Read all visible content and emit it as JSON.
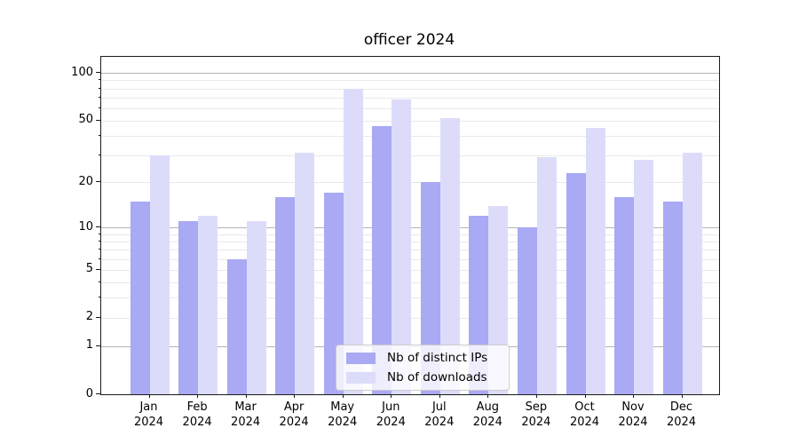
{
  "chart_data": {
    "type": "bar",
    "title": "officer 2024",
    "x_year": "2024",
    "categories": [
      "Jan",
      "Feb",
      "Mar",
      "Apr",
      "May",
      "Jun",
      "Jul",
      "Aug",
      "Sep",
      "Oct",
      "Nov",
      "Dec"
    ],
    "series": [
      {
        "name": "Nb of distinct IPs",
        "color": "#a9a9f4",
        "values": [
          15,
          11,
          6,
          16,
          17,
          46,
          20,
          12,
          10,
          23,
          16,
          15
        ]
      },
      {
        "name": "Nb of downloads",
        "color": "#dcdcfa",
        "values": [
          30,
          12,
          11,
          31,
          80,
          68,
          52,
          14,
          29,
          45,
          28,
          31
        ]
      }
    ],
    "yscale": "log1p",
    "ylim": [
      0,
      126
    ],
    "yticks": [
      0,
      1,
      2,
      5,
      10,
      20,
      50,
      100
    ],
    "major_gridlines": [
      1,
      10,
      100
    ],
    "minor_gridlines": [
      2,
      3,
      4,
      5,
      6,
      7,
      8,
      9,
      20,
      30,
      40,
      50,
      60,
      70,
      80,
      90
    ],
    "grid_color_major": "#b4b4b4",
    "grid_color_minor": "#e9e9e9",
    "legend_position": "lower center"
  }
}
